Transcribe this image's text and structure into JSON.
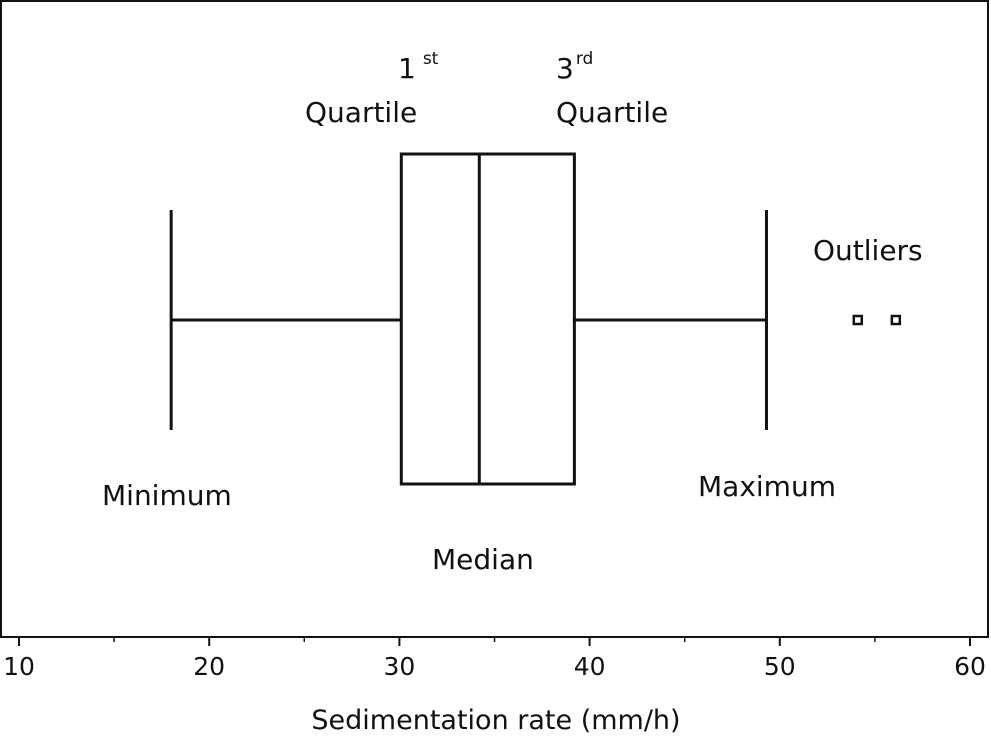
{
  "chart_data": {
    "type": "box",
    "xlabel": "Sedimentation rate (mm/h)",
    "xlim": [
      10,
      60
    ],
    "major_ticks": [
      10,
      20,
      30,
      40,
      50,
      60
    ],
    "minor_ticks": [
      15,
      25,
      35,
      45,
      55
    ],
    "tick_labels": [
      "10",
      "20",
      "30",
      "40",
      "50",
      "60"
    ],
    "box": {
      "minimum": 18,
      "q1": 30.1,
      "median": 34.2,
      "q3": 39.2,
      "maximum": 49.3
    },
    "outliers": [
      54.1,
      56.1
    ],
    "annotations": {
      "q1": {
        "main": "1",
        "sup": "st",
        "word": "Quartile"
      },
      "q3": {
        "main": "3",
        "sup": "rd",
        "word": "Quartile"
      },
      "minimum": "Minimum",
      "maximum": "Maximum",
      "median": "Median",
      "outliers": "Outliers"
    },
    "colors": {
      "stroke": "#111111",
      "background": "#ffffff"
    }
  }
}
